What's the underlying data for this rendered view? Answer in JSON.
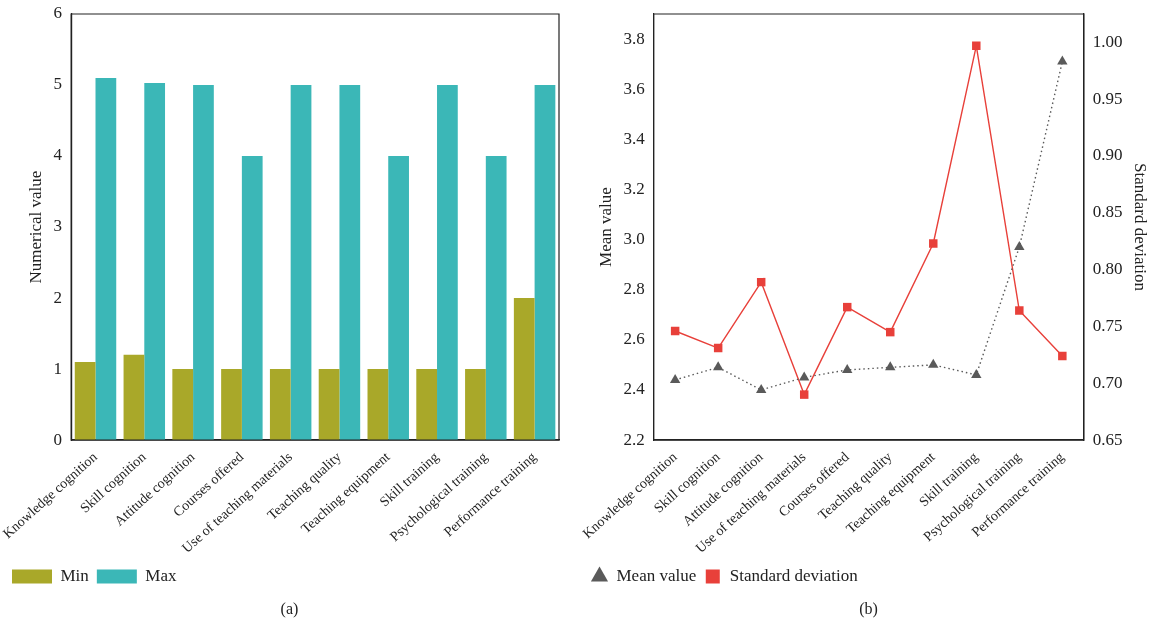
{
  "chart_data": [
    {
      "type": "bar",
      "ylabel": "Numerical value",
      "categories": [
        "Knowledge cognition",
        "Skill cognition",
        "Attitude cognition",
        "Courses offered",
        "Use of teaching materials",
        "Teaching quality",
        "Teaching equipment",
        "Skill training",
        "Psychological training",
        "Performance training"
      ],
      "series": [
        {
          "name": "Min",
          "color": "#a9a829",
          "values": [
            1.1,
            1.2,
            1,
            1,
            1,
            1,
            1,
            1,
            1,
            2
          ]
        },
        {
          "name": "Max",
          "color": "#3bb7b7",
          "values": [
            5.1,
            5.03,
            5,
            4,
            5,
            5,
            4,
            5,
            4,
            5
          ]
        }
      ],
      "ylim": [
        0,
        6
      ],
      "yticks": [
        0,
        1,
        2,
        3,
        4,
        5,
        6
      ],
      "grid": false,
      "legend": "bottom left",
      "annotations": [
        "(a)"
      ]
    },
    {
      "type": "line",
      "xlabel": null,
      "ylabel": "Mean value",
      "y2label": "Standard deviation",
      "categories": [
        "Knowledge cognition",
        "Skill cognition",
        "Attitude cognition",
        "Use of teaching materials",
        "Courses offered",
        "Teaching quality",
        "Teaching equipment",
        "Skill training",
        "Psychological training",
        "Performance training"
      ],
      "series": [
        {
          "name": "Mean value",
          "color": "#5a5a5a",
          "marker": "triangle",
          "line_style": "dotted",
          "values": [
            2.44,
            2.49,
            2.4,
            2.45,
            2.48,
            2.49,
            2.5,
            2.46,
            2.97,
            3.71
          ]
        },
        {
          "name": "Standard deviation",
          "color": "#e8403a",
          "marker": "square",
          "line_style": "solid",
          "axis": "y2",
          "values": [
            0.746,
            0.731,
            0.789,
            0.69,
            0.767,
            0.745,
            0.823,
            0.997,
            0.764,
            0.724
          ]
        }
      ],
      "ylim": [
        2.2,
        3.9
      ],
      "yticks": [
        2.2,
        2.4,
        2.6,
        2.8,
        {
          "value": 3,
          "label": "3.0"
        },
        3.2,
        3.4,
        3.6,
        3.8
      ],
      "y2lim": [
        0.65,
        1.025
      ],
      "y2ticks": [
        0.65,
        {
          "value": 0.7,
          "label": "0.70"
        },
        0.75,
        {
          "value": 0.8,
          "label": "0.80"
        },
        0.85,
        {
          "value": 0.9,
          "label": "0.90"
        },
        0.95,
        {
          "value": 1,
          "label": "1.00"
        }
      ],
      "grid": false,
      "legend": "bottom left",
      "annotations": [
        "(b)"
      ]
    }
  ]
}
